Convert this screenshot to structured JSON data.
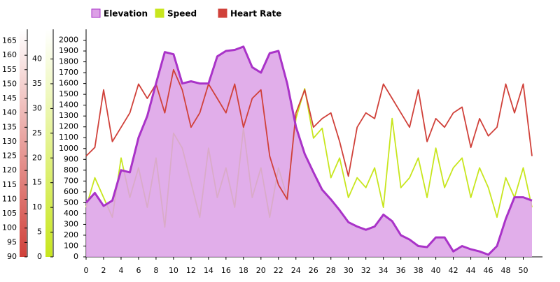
{
  "chart_data": {
    "type": "line",
    "x": [
      0,
      1,
      2,
      3,
      4,
      5,
      6,
      7,
      8,
      9,
      10,
      11,
      12,
      13,
      14,
      15,
      16,
      17,
      18,
      19,
      20,
      21,
      22,
      23,
      24,
      25,
      26,
      27,
      28,
      29,
      30,
      31,
      32,
      33,
      34,
      35,
      36,
      37,
      38,
      39,
      40,
      41,
      42,
      43,
      44,
      45,
      46,
      47,
      48,
      49,
      50,
      51
    ],
    "xlim": [
      0,
      52.2
    ],
    "xticks": [
      0,
      2,
      4,
      6,
      8,
      10,
      12,
      14,
      16,
      18,
      20,
      22,
      24,
      26,
      28,
      30,
      32,
      34,
      36,
      38,
      40,
      42,
      44,
      46,
      48,
      50
    ],
    "ylim": [
      0,
      2100
    ],
    "yticks": [
      0,
      100,
      200,
      300,
      400,
      500,
      600,
      700,
      800,
      900,
      1000,
      1100,
      1200,
      1300,
      1400,
      1500,
      1600,
      1700,
      1800,
      1900,
      2000
    ],
    "y2lim": [
      0,
      46
    ],
    "y2ticks": [
      0,
      5,
      10,
      15,
      20,
      25,
      30,
      35,
      40
    ],
    "y3lim": [
      90,
      169
    ],
    "y3ticks": [
      90,
      95,
      100,
      105,
      110,
      115,
      120,
      125,
      130,
      135,
      140,
      145,
      150,
      155,
      160,
      165
    ],
    "series": [
      {
        "name": "Elevation",
        "color": "#a933c8",
        "fill": "#dca0e6",
        "axis": "y",
        "values": [
          500,
          590,
          470,
          520,
          800,
          780,
          1100,
          1300,
          1600,
          1890,
          1870,
          1600,
          1620,
          1600,
          1600,
          1850,
          1900,
          1910,
          1940,
          1750,
          1700,
          1880,
          1900,
          1600,
          1200,
          950,
          780,
          620,
          530,
          430,
          320,
          280,
          250,
          280,
          390,
          330,
          200,
          160,
          100,
          90,
          180,
          180,
          50,
          100,
          70,
          50,
          20,
          100,
          350,
          550,
          550,
          520
        ]
      },
      {
        "name": "Speed",
        "color": "#c8e61e",
        "axis": "y2",
        "values": [
          10,
          16,
          12,
          8,
          20,
          12,
          18,
          10,
          20,
          6,
          25,
          22,
          15,
          8,
          22,
          12,
          18,
          10,
          26,
          12,
          18,
          8,
          18,
          12,
          28,
          34,
          24,
          26,
          16,
          20,
          12,
          16,
          14,
          18,
          10,
          28,
          14,
          16,
          20,
          12,
          22,
          14,
          18,
          20,
          12,
          18,
          14,
          8,
          16,
          12,
          18,
          10
        ]
      },
      {
        "name": "Heart Rate",
        "color": "#d0413a",
        "axis": "y3",
        "values": [
          125,
          128,
          148,
          130,
          135,
          140,
          150,
          145,
          150,
          140,
          155,
          148,
          135,
          140,
          150,
          145,
          140,
          150,
          135,
          145,
          148,
          125,
          115,
          110,
          140,
          148,
          135,
          138,
          140,
          130,
          118,
          135,
          140,
          138,
          150,
          145,
          140,
          135,
          148,
          130,
          138,
          135,
          140,
          142,
          128,
          138,
          132,
          135,
          150,
          140,
          150,
          125
        ]
      }
    ]
  }
}
